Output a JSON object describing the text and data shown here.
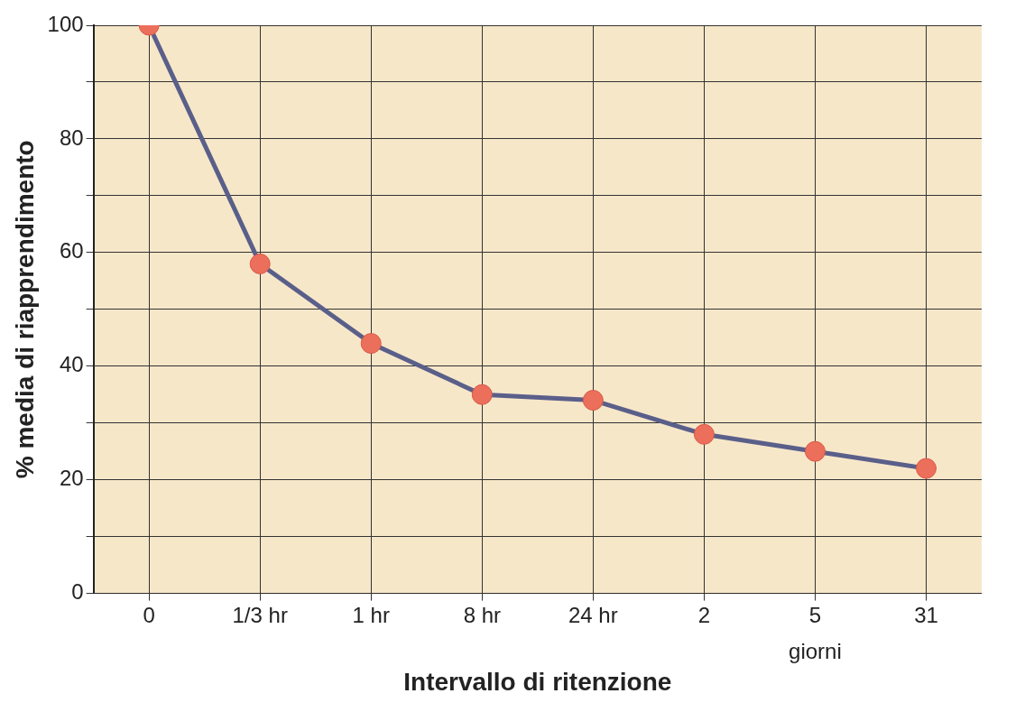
{
  "chart_data": {
    "type": "line",
    "xlabel": "Intervallo di ritenzione",
    "ylabel": "% media di riapprendimento",
    "categories": [
      "0",
      "1/3 hr",
      "1 hr",
      "8 hr",
      "24 hr",
      "2",
      "5",
      "31"
    ],
    "series": [
      {
        "color": "#5a5f8a",
        "values": [
          100,
          58,
          44,
          35,
          34,
          28,
          25,
          22
        ]
      }
    ],
    "ylim": [
      0,
      100
    ],
    "yticks": [
      0,
      {
        "value": 10,
        "label": null
      },
      20,
      {
        "value": 30,
        "label": null
      },
      40,
      {
        "value": 50,
        "label": null
      },
      60,
      {
        "value": 70,
        "label": null
      },
      80,
      {
        "value": 90,
        "label": null
      },
      100
    ],
    "grid": true,
    "legend": false,
    "marker": "circle",
    "line_style": "solid",
    "annotations": [
      "giorni"
    ]
  }
}
